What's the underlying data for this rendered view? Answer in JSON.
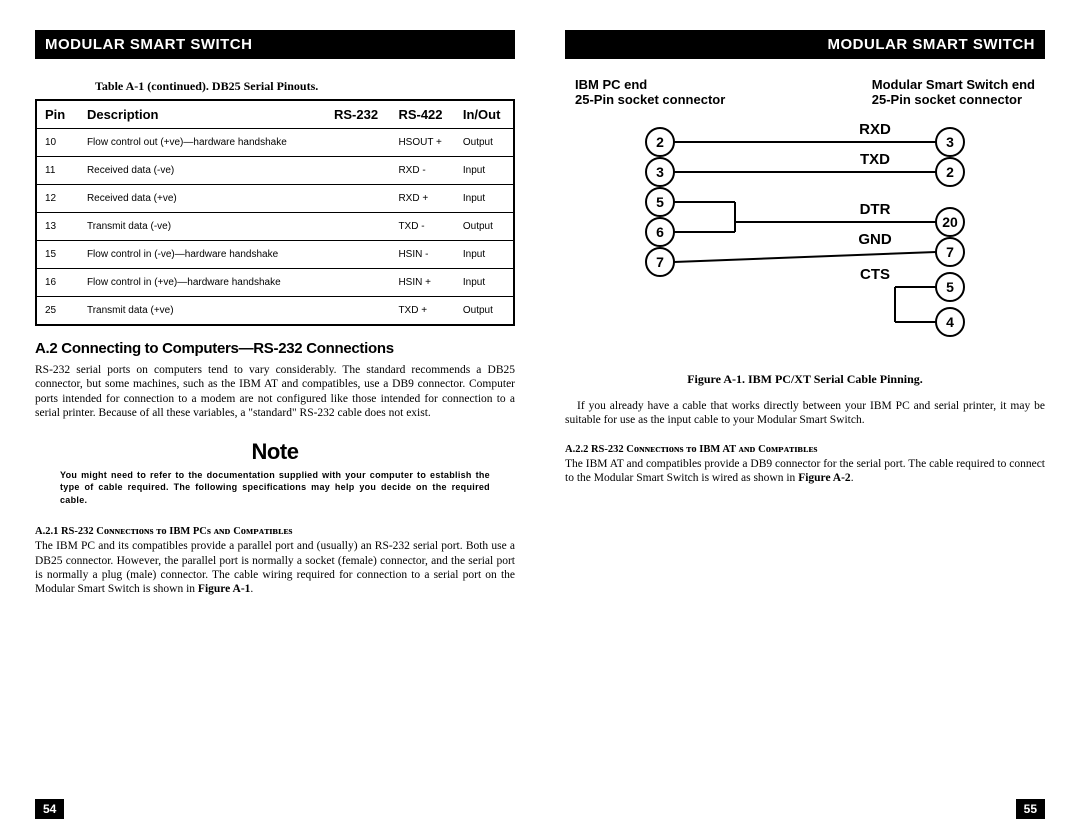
{
  "header_title": "MODULAR SMART SWITCH",
  "page_left_num": "54",
  "page_right_num": "55",
  "table_caption": "Table A-1 (continued).  DB25 Serial Pinouts.",
  "table_headers": {
    "pin": "Pin",
    "desc": "Description",
    "rs232": "RS-232",
    "rs422": "RS-422",
    "io": "In/Out"
  },
  "table_rows": [
    {
      "pin": "10",
      "desc": "Flow control out (+ve)—hardware handshake",
      "rs232": "",
      "rs422": "HSOUT +",
      "io": "Output"
    },
    {
      "pin": "11",
      "desc": "Received data (-ve)",
      "rs232": "",
      "rs422": "RXD -",
      "io": "Input"
    },
    {
      "pin": "12",
      "desc": "Received data (+ve)",
      "rs232": "",
      "rs422": "RXD +",
      "io": "Input"
    },
    {
      "pin": "13",
      "desc": "Transmit data (-ve)",
      "rs232": "",
      "rs422": "TXD -",
      "io": "Output"
    },
    {
      "pin": "15",
      "desc": "Flow control in (-ve)—hardware handshake",
      "rs232": "",
      "rs422": "HSIN -",
      "io": "Input"
    },
    {
      "pin": "16",
      "desc": "Flow control in (+ve)—hardware handshake",
      "rs232": "",
      "rs422": "HSIN +",
      "io": "Input"
    },
    {
      "pin": "25",
      "desc": "Transmit data (+ve)",
      "rs232": "",
      "rs422": "TXD +",
      "io": "Output"
    }
  ],
  "section_a2_title": "A.2  Connecting to Computers—RS-232 Connections",
  "section_a2_body": "RS-232 serial ports on computers tend to vary considerably.  The standard recommends a DB25 connector, but some machines, such as the IBM AT and compatibles, use a DB9 connector.  Computer ports intended for connection to a modem are not configured like those intended for connection to a serial printer.  Because of all these variables, a \"standard\" RS-232 cable does not exist.",
  "note_title": "Note",
  "note_body": "You might need to refer to the documentation supplied with your computer to establish the type of cable required.  The following specifications may help you decide on the required cable.",
  "sub_a21_title": "A.2.1  RS-232 Cᴏɴɴᴇᴄᴛɪᴏɴs ᴛᴏ IBM PCs ᴀɴᴅ Cᴏᴍᴘᴀᴛɪʙʟᴇs",
  "sub_a21_body_pre": "The IBM PC and its compatibles provide a parallel port and (usually) an RS-232 serial port.  Both use a DB25 connector.  However, the parallel port is normally a socket (female) connector, and the serial port is normally a plug (male) connector.  The cable wiring required for connection to a serial port on the Modular Smart Switch is shown in ",
  "sub_a21_body_ref": "Figure A-1",
  "sub_a21_body_post": ".",
  "diagram": {
    "left_head_1": "IBM PC end",
    "left_head_2": "25-Pin socket connector",
    "right_head_1": "Modular Smart Switch end",
    "right_head_2": "25-Pin socket connector",
    "left_pins": [
      "2",
      "3",
      "5",
      "6",
      "7"
    ],
    "right_pins": [
      "3",
      "2",
      "20",
      "7",
      "5",
      "4"
    ],
    "signals": [
      "RXD",
      "TXD",
      "DTR",
      "GND",
      "CTS"
    ],
    "circle_stroke": "#000000",
    "circle_fill": "#ffffff",
    "line_stroke": "#000000",
    "line_width": 2,
    "font": "Arial"
  },
  "fig_caption": "Figure A-1.  IBM PC/XT Serial Cable Pinning.",
  "right_para1": "If you already have a cable that works directly between your IBM PC and serial printer, it may be suitable for use as the input cable to your Modular Smart Switch.",
  "sub_a22_title": "A.2.2  RS-232 Cᴏɴɴᴇᴄᴛɪᴏɴs ᴛᴏ IBM AT ᴀɴᴅ Cᴏᴍᴘᴀᴛɪʙʟᴇs",
  "sub_a22_body_pre": "The IBM AT and compatibles provide a DB9 connector for the serial port.  The cable required to connect to the Modular Smart Switch is wired as shown in ",
  "sub_a22_body_ref": "Figure A-2",
  "sub_a22_body_post": "."
}
